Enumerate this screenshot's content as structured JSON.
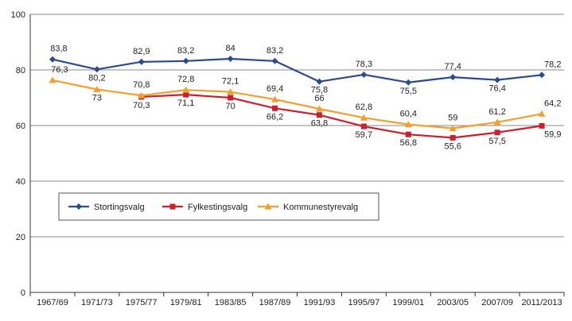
{
  "chart_data": {
    "type": "line",
    "title": "",
    "xlabel": "",
    "ylabel": "",
    "ylim": [
      0,
      100
    ],
    "yticks": [
      0,
      20,
      40,
      60,
      80,
      100
    ],
    "grid": "horizontal",
    "legend_position": "inside-lower-left",
    "categories": [
      "1967/69",
      "1971/73",
      "1975/77",
      "1979/81",
      "1983/85",
      "1987/89",
      "1991/93",
      "1995/97",
      "1999/01",
      "2003/05",
      "2007/09",
      "2011/2013"
    ],
    "series": [
      {
        "name": "Stortingsvalg",
        "color": "#2e4a8a",
        "marker": "diamond",
        "values": [
          83.8,
          80.2,
          82.9,
          83.2,
          84,
          83.2,
          75.8,
          78.3,
          75.5,
          77.4,
          76.4,
          78.2
        ],
        "labels": [
          "83,8",
          "80,2",
          "82,9",
          "83,2",
          "84",
          "83,2",
          "75,8",
          "78,3",
          "75,5",
          "77,4",
          "76,4",
          "78,2"
        ]
      },
      {
        "name": "Fylkestingsvalg",
        "color": "#c8202f",
        "marker": "square",
        "values": [
          null,
          null,
          70.3,
          71.1,
          70,
          66.2,
          63.8,
          59.7,
          56.8,
          55.6,
          57.5,
          59.9
        ],
        "labels": [
          null,
          null,
          "70,3",
          "71,1",
          "70",
          "66,2",
          "63,8",
          "59,7",
          "56,8",
          "55,6",
          "57,5",
          "59,9"
        ]
      },
      {
        "name": "Kommunestyrevalg",
        "color": "#f0a030",
        "marker": "triangle",
        "values": [
          76.3,
          73,
          70.8,
          72.8,
          72.1,
          69.4,
          66,
          62.8,
          60.4,
          59,
          61.2,
          64.2
        ],
        "labels": [
          "76,3",
          "73",
          "70,8",
          "72,8",
          "72,1",
          "69,4",
          "66",
          "62,8",
          "60,4",
          "59",
          "61,2",
          "64,2"
        ]
      }
    ]
  }
}
